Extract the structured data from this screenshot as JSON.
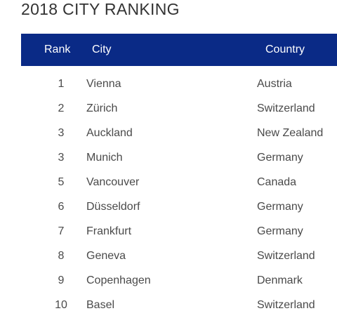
{
  "title": "2018 CITY RANKING",
  "header": {
    "rank": "Rank",
    "city": "City",
    "country": "Country",
    "background": "#0a2a86"
  },
  "rows": [
    {
      "rank": "1",
      "city": "Vienna",
      "country": "Austria"
    },
    {
      "rank": "2",
      "city": "Zürich",
      "country": "Switzerland"
    },
    {
      "rank": "3",
      "city": "Auckland",
      "country": "New Zealand"
    },
    {
      "rank": "3",
      "city": "Munich",
      "country": "Germany"
    },
    {
      "rank": "5",
      "city": "Vancouver",
      "country": "Canada"
    },
    {
      "rank": "6",
      "city": "Düsseldorf",
      "country": "Germany"
    },
    {
      "rank": "7",
      "city": "Frankfurt",
      "country": "Germany"
    },
    {
      "rank": "8",
      "city": "Geneva",
      "country": "Switzerland"
    },
    {
      "rank": "9",
      "city": "Copenhagen",
      "country": "Denmark"
    },
    {
      "rank": "10",
      "city": "Basel",
      "country": "Switzerland"
    }
  ]
}
